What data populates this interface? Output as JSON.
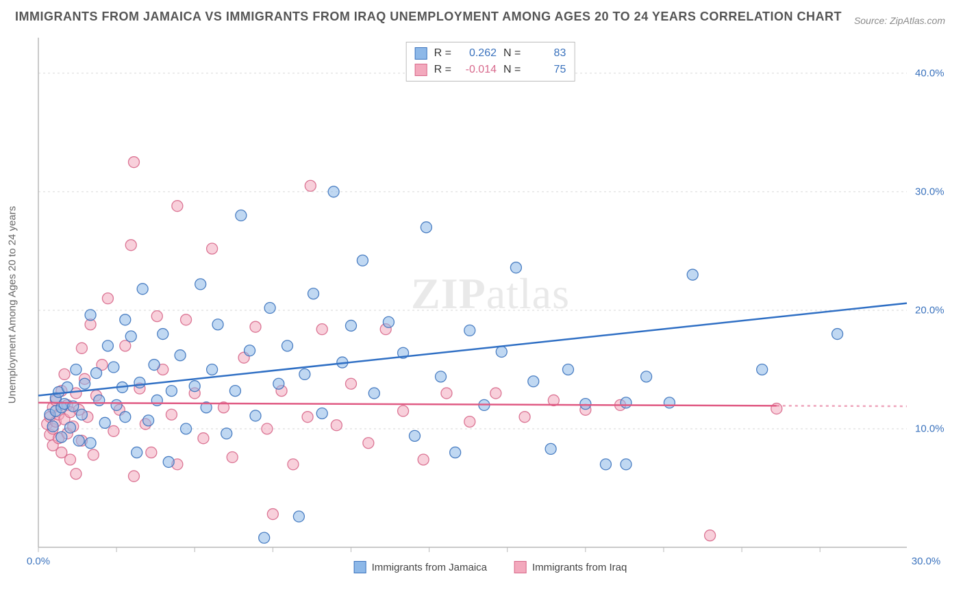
{
  "title": "IMMIGRANTS FROM JAMAICA VS IMMIGRANTS FROM IRAQ UNEMPLOYMENT AMONG AGES 20 TO 24 YEARS CORRELATION CHART",
  "source": "Source: ZipAtlas.com",
  "ylabel": "Unemployment Among Ages 20 to 24 years",
  "watermark": {
    "zip": "ZIP",
    "atlas": "atlas"
  },
  "series": {
    "a": {
      "name": "Immigants from Jamaica",
      "label": "Immigrants from Jamaica",
      "fill": "#8db8e8",
      "stroke": "#3a72bd",
      "marker_opacity": 0.55,
      "r": 0.262,
      "n": 83,
      "r_color": "#3a72bd",
      "n_color": "#3a72bd",
      "trend": {
        "x1": 0,
        "y1": 12.8,
        "x2": 30,
        "y2": 20.6,
        "color": "#2f6fc4",
        "width": 2.5,
        "dash_from_x": null
      }
    },
    "b": {
      "name": "Immigrants from Iraq",
      "label": "Immigrants from Iraq",
      "fill": "#f3a9bd",
      "stroke": "#d76789",
      "marker_opacity": 0.55,
      "r": -0.014,
      "n": 75,
      "r_color": "#d86a8d",
      "n_color": "#3a72bd",
      "trend": {
        "x1": 0,
        "y1": 12.2,
        "x2": 30,
        "y2": 11.9,
        "color": "#e05a83",
        "width": 2.5,
        "dash_from_x": 25.5
      }
    }
  },
  "stats_labels": {
    "r": "R  =",
    "n": "N  ="
  },
  "chart": {
    "type": "scatter",
    "xlim": [
      0,
      30
    ],
    "ylim": [
      0,
      43
    ],
    "xtick_positions": [
      0,
      2.7,
      5.4,
      8.1,
      10.8,
      13.5,
      16.2,
      18.9,
      21.6,
      24.3,
      27.0
    ],
    "xtick_labels_shown": {
      "0": "0.0%",
      "30": "30.0%"
    },
    "ytick_positions": [
      10,
      20,
      30,
      40
    ],
    "ytick_labels": {
      "10": "10.0%",
      "20": "20.0%",
      "30": "30.0%",
      "40": "40.0%"
    },
    "grid_color": "#d7d7d7",
    "axis_color": "#b8b8b8",
    "axis_label_color": "#3a72bd",
    "background_color": "#ffffff",
    "marker_radius": 8
  },
  "points_a": [
    [
      0.4,
      11.2
    ],
    [
      0.5,
      10.2
    ],
    [
      0.6,
      12.6
    ],
    [
      0.6,
      11.5
    ],
    [
      0.7,
      13.1
    ],
    [
      0.8,
      9.3
    ],
    [
      0.8,
      11.8
    ],
    [
      0.9,
      12.1
    ],
    [
      1.0,
      13.5
    ],
    [
      1.1,
      10.1
    ],
    [
      1.2,
      11.9
    ],
    [
      1.3,
      15.0
    ],
    [
      1.4,
      9.0
    ],
    [
      1.5,
      11.2
    ],
    [
      1.6,
      13.8
    ],
    [
      1.8,
      19.6
    ],
    [
      1.8,
      8.8
    ],
    [
      2.0,
      14.7
    ],
    [
      2.1,
      12.4
    ],
    [
      2.3,
      10.5
    ],
    [
      2.4,
      17.0
    ],
    [
      2.6,
      15.2
    ],
    [
      2.7,
      12.0
    ],
    [
      2.9,
      13.5
    ],
    [
      3.0,
      19.2
    ],
    [
      3.0,
      11.0
    ],
    [
      3.2,
      17.8
    ],
    [
      3.4,
      8.0
    ],
    [
      3.5,
      13.9
    ],
    [
      3.6,
      21.8
    ],
    [
      3.8,
      10.7
    ],
    [
      4.0,
      15.4
    ],
    [
      4.1,
      12.4
    ],
    [
      4.3,
      18.0
    ],
    [
      4.5,
      7.2
    ],
    [
      4.6,
      13.2
    ],
    [
      4.9,
      16.2
    ],
    [
      5.1,
      10.0
    ],
    [
      5.4,
      13.6
    ],
    [
      5.6,
      22.2
    ],
    [
      5.8,
      11.8
    ],
    [
      6.0,
      15.0
    ],
    [
      6.2,
      18.8
    ],
    [
      6.5,
      9.6
    ],
    [
      6.8,
      13.2
    ],
    [
      7.0,
      28.0
    ],
    [
      7.3,
      16.6
    ],
    [
      7.5,
      11.1
    ],
    [
      7.8,
      0.8
    ],
    [
      8.0,
      20.2
    ],
    [
      8.3,
      13.8
    ],
    [
      8.6,
      17.0
    ],
    [
      9.0,
      2.6
    ],
    [
      9.2,
      14.6
    ],
    [
      9.5,
      21.4
    ],
    [
      9.8,
      11.3
    ],
    [
      10.2,
      30.0
    ],
    [
      10.5,
      15.6
    ],
    [
      10.8,
      18.7
    ],
    [
      11.2,
      24.2
    ],
    [
      11.6,
      13.0
    ],
    [
      12.1,
      19.0
    ],
    [
      12.6,
      16.4
    ],
    [
      13.0,
      9.4
    ],
    [
      13.4,
      27.0
    ],
    [
      13.9,
      14.4
    ],
    [
      14.4,
      8.0
    ],
    [
      14.9,
      18.3
    ],
    [
      15.4,
      12.0
    ],
    [
      16.0,
      16.5
    ],
    [
      16.5,
      23.6
    ],
    [
      17.1,
      14.0
    ],
    [
      17.7,
      8.3
    ],
    [
      18.3,
      15.0
    ],
    [
      18.9,
      12.1
    ],
    [
      19.6,
      7.0
    ],
    [
      20.3,
      12.2
    ],
    [
      21.0,
      14.4
    ],
    [
      21.8,
      12.2
    ],
    [
      22.6,
      23.0
    ],
    [
      25.0,
      15.0
    ],
    [
      27.6,
      18.0
    ],
    [
      20.3,
      7.0
    ]
  ],
  "points_b": [
    [
      0.3,
      10.4
    ],
    [
      0.4,
      11.0
    ],
    [
      0.4,
      9.5
    ],
    [
      0.5,
      10.0
    ],
    [
      0.5,
      11.8
    ],
    [
      0.5,
      8.6
    ],
    [
      0.6,
      10.6
    ],
    [
      0.6,
      12.4
    ],
    [
      0.7,
      9.2
    ],
    [
      0.7,
      11.2
    ],
    [
      0.8,
      13.2
    ],
    [
      0.8,
      8.0
    ],
    [
      0.9,
      10.8
    ],
    [
      0.9,
      14.6
    ],
    [
      1.0,
      9.6
    ],
    [
      1.0,
      12.0
    ],
    [
      1.1,
      7.4
    ],
    [
      1.1,
      11.4
    ],
    [
      1.2,
      10.2
    ],
    [
      1.3,
      13.0
    ],
    [
      1.3,
      6.2
    ],
    [
      1.4,
      11.6
    ],
    [
      1.5,
      16.8
    ],
    [
      1.5,
      9.0
    ],
    [
      1.6,
      14.2
    ],
    [
      1.7,
      11.0
    ],
    [
      1.8,
      18.8
    ],
    [
      1.9,
      7.8
    ],
    [
      2.0,
      12.8
    ],
    [
      2.2,
      15.4
    ],
    [
      2.4,
      21.0
    ],
    [
      2.6,
      9.8
    ],
    [
      2.8,
      11.6
    ],
    [
      3.0,
      17.0
    ],
    [
      3.2,
      25.5
    ],
    [
      3.3,
      6.0
    ],
    [
      3.3,
      32.5
    ],
    [
      3.5,
      13.4
    ],
    [
      3.7,
      10.4
    ],
    [
      3.9,
      8.0
    ],
    [
      4.1,
      19.5
    ],
    [
      4.3,
      15.0
    ],
    [
      4.6,
      11.2
    ],
    [
      4.8,
      7.0
    ],
    [
      4.8,
      28.8
    ],
    [
      5.1,
      19.2
    ],
    [
      5.4,
      13.0
    ],
    [
      5.7,
      9.2
    ],
    [
      6.0,
      25.2
    ],
    [
      6.4,
      11.8
    ],
    [
      6.7,
      7.6
    ],
    [
      7.1,
      16.0
    ],
    [
      7.5,
      18.6
    ],
    [
      7.9,
      10.0
    ],
    [
      8.1,
      2.8
    ],
    [
      8.4,
      13.2
    ],
    [
      8.8,
      7.0
    ],
    [
      9.3,
      11.0
    ],
    [
      9.4,
      30.5
    ],
    [
      9.8,
      18.4
    ],
    [
      10.3,
      10.3
    ],
    [
      10.8,
      13.8
    ],
    [
      11.4,
      8.8
    ],
    [
      12.0,
      18.4
    ],
    [
      12.6,
      11.5
    ],
    [
      13.3,
      7.4
    ],
    [
      14.1,
      13.0
    ],
    [
      14.9,
      10.6
    ],
    [
      15.8,
      13.0
    ],
    [
      16.8,
      11.0
    ],
    [
      17.8,
      12.4
    ],
    [
      18.9,
      11.6
    ],
    [
      20.1,
      12.0
    ],
    [
      23.2,
      1.0
    ],
    [
      25.5,
      11.7
    ]
  ]
}
